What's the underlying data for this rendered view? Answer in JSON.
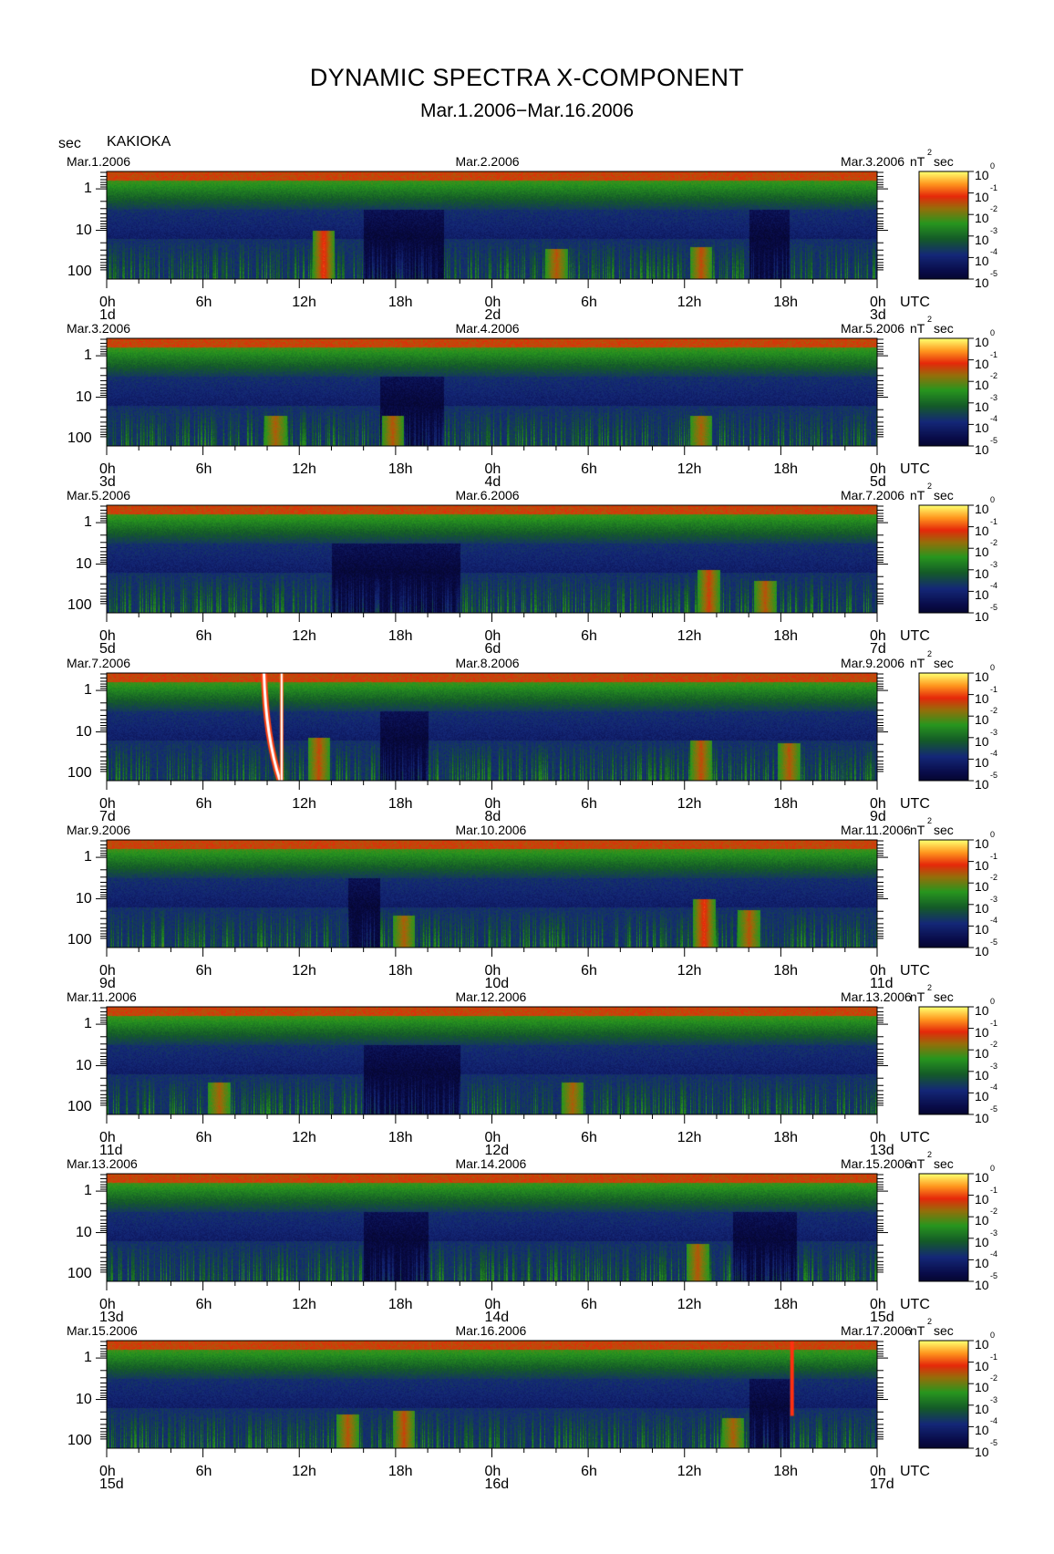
{
  "title": "DYNAMIC SPECTRA X-COMPONENT",
  "subtitle": "Mar.1.2006−Mar.16.2006",
  "y_unit_label": "sec",
  "station": "KAKIOKA",
  "colorbar_unit": "nT",
  "colorbar_unit_sup": "2",
  "colorbar_unit_suffix": "sec",
  "utc_label": "UTC",
  "colorbar_ticks": [
    {
      "base": "10",
      "exp": "0"
    },
    {
      "base": "10",
      "exp": "-1"
    },
    {
      "base": "10",
      "exp": "-2"
    },
    {
      "base": "10",
      "exp": "-3"
    },
    {
      "base": "10",
      "exp": "-4"
    },
    {
      "base": "10",
      "exp": "-5"
    }
  ],
  "colors": {
    "background": "#000000",
    "low": "#0a1150",
    "mid": "#1f8a1f",
    "high": "#e02010",
    "peak": "#ffff40"
  },
  "chart_data": {
    "type": "heatmap",
    "description_axes": "x: time UTC (hours), y: period (sec, log scale, inverted), color: power nT^2 sec (log)",
    "ylim": [
      1,
      100
    ],
    "ylog": true,
    "y_ticks": [
      "1",
      "10",
      "100"
    ],
    "x_ticks": [
      "0h",
      "6h",
      "12h",
      "18h",
      "0h",
      "6h",
      "12h",
      "18h",
      "0h"
    ],
    "color_range": [
      1e-05,
      1
    ],
    "panels": [
      {
        "left_date": "Mar.1.2006",
        "mid_date": "Mar.2.2006",
        "right_date": "Mar.3.2006",
        "day_labels": [
          "1d",
          "2d",
          "3d"
        ],
        "events": [
          {
            "hour": 13.5,
            "intensity": 0.8,
            "top": 0.55
          },
          {
            "hour": 28,
            "intensity": 0.55,
            "top": 0.72
          },
          {
            "hour": 37,
            "intensity": 0.6,
            "top": 0.7
          }
        ],
        "quiet": [
          [
            16,
            21
          ],
          [
            40,
            42.5
          ]
        ]
      },
      {
        "left_date": "Mar.3.2006",
        "mid_date": "Mar.4.2006",
        "right_date": "Mar.5.2006",
        "day_labels": [
          "3d",
          "4d",
          "5d"
        ],
        "events": [
          {
            "hour": 10.5,
            "intensity": 0.5,
            "top": 0.72
          },
          {
            "hour": 17.8,
            "intensity": 0.55,
            "top": 0.72
          },
          {
            "hour": 37,
            "intensity": 0.5,
            "top": 0.72
          }
        ],
        "quiet": [
          [
            17,
            21
          ]
        ]
      },
      {
        "left_date": "Mar.5.2006",
        "mid_date": "Mar.6.2006",
        "right_date": "Mar.7.2006",
        "day_labels": [
          "5d",
          "6d",
          "7d"
        ],
        "events": [
          {
            "hour": 37.5,
            "intensity": 0.65,
            "top": 0.6
          },
          {
            "hour": 41,
            "intensity": 0.55,
            "top": 0.7
          }
        ],
        "quiet": [
          [
            14,
            22
          ]
        ]
      },
      {
        "left_date": "Mar.7.2006",
        "mid_date": "Mar.8.2006",
        "right_date": "Mar.9.2006",
        "day_labels": [
          "7d",
          "8d",
          "9d"
        ],
        "events": [
          {
            "hour": 13.2,
            "intensity": 0.6,
            "top": 0.6
          },
          {
            "hour": 37,
            "intensity": 0.6,
            "top": 0.62
          },
          {
            "hour": 42.5,
            "intensity": 0.55,
            "top": 0.65
          }
        ],
        "bursts": [
          {
            "hour_start": 9.8,
            "hour_end": 10.8,
            "kind": "curve"
          },
          {
            "hour_start": 10.9,
            "hour_end": 11.0,
            "kind": "line"
          }
        ],
        "quiet": [
          [
            17,
            20
          ]
        ]
      },
      {
        "left_date": "Mar.9.2006",
        "mid_date": "Mar.10.2006",
        "right_date": "Mar.11.2006",
        "day_labels": [
          "9d",
          "10d",
          "11d"
        ],
        "events": [
          {
            "hour": 37.2,
            "intensity": 0.8,
            "top": 0.55
          },
          {
            "hour": 40,
            "intensity": 0.55,
            "top": 0.65
          },
          {
            "hour": 18.5,
            "intensity": 0.5,
            "top": 0.7
          }
        ],
        "quiet": [
          [
            15,
            17
          ]
        ]
      },
      {
        "left_date": "Mar.11.2006",
        "mid_date": "Mar.12.2006",
        "right_date": "Mar.13.2006",
        "day_labels": [
          "11d",
          "12d",
          "13d"
        ],
        "events": [
          {
            "hour": 7,
            "intensity": 0.5,
            "top": 0.7
          },
          {
            "hour": 29,
            "intensity": 0.5,
            "top": 0.7
          }
        ],
        "quiet": [
          [
            16,
            22
          ]
        ]
      },
      {
        "left_date": "Mar.13.2006",
        "mid_date": "Mar.14.2006",
        "right_date": "Mar.15.2006",
        "day_labels": [
          "13d",
          "14d",
          "15d"
        ],
        "events": [
          {
            "hour": 36.8,
            "intensity": 0.55,
            "top": 0.65
          }
        ],
        "quiet": [
          [
            16,
            20
          ],
          [
            39,
            43
          ]
        ]
      },
      {
        "left_date": "Mar.15.2006",
        "mid_date": "Mar.16.2006",
        "right_date": "Mar.17.2006",
        "day_labels": [
          "15d",
          "16d",
          "17d"
        ],
        "events": [
          {
            "hour": 15,
            "intensity": 0.55,
            "top": 0.68
          },
          {
            "hour": 18.5,
            "intensity": 0.6,
            "top": 0.65
          },
          {
            "hour": 39,
            "intensity": 0.5,
            "top": 0.72
          }
        ],
        "bursts": [
          {
            "hour_start": 42.7,
            "hour_end": 42.8,
            "kind": "line"
          }
        ],
        "quiet": [
          [
            40,
            42.5
          ]
        ]
      }
    ]
  }
}
